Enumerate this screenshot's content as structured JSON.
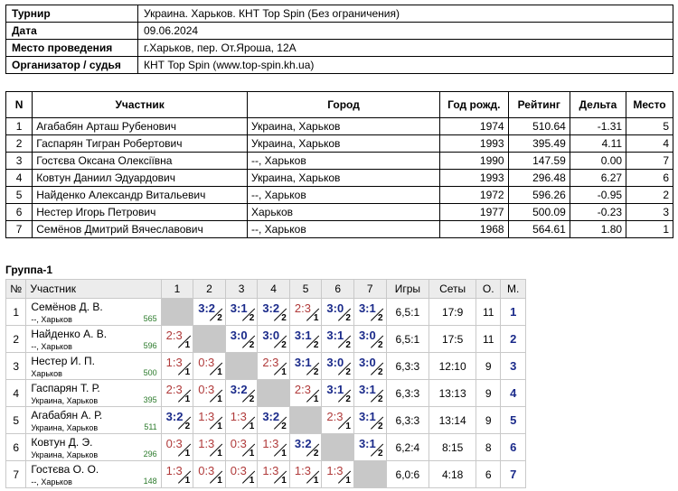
{
  "info": [
    {
      "label": "Турнир",
      "value": "Украина. Харьков. КНТ Top Spin (Без ограничения)"
    },
    {
      "label": "Дата",
      "value": "09.06.2024"
    },
    {
      "label": "Место проведения",
      "value": "г.Харьков, пер. От.Яроша, 12А"
    },
    {
      "label": "Организатор / судья",
      "value": "КНТ Top Spin (www.top-spin.kh.ua)"
    }
  ],
  "participants": {
    "headers": [
      "N",
      "Участник",
      "Город",
      "Год рожд.",
      "Рейтинг",
      "Дельта",
      "Место"
    ],
    "rows": [
      [
        "1",
        "Агабабян Арташ Рубенович",
        "Украина, Харьков",
        "1974",
        "510.64",
        "-1.31",
        "5"
      ],
      [
        "2",
        "Гаспарян Тигран Робертович",
        "Украина, Харьков",
        "1993",
        "395.49",
        "4.11",
        "4"
      ],
      [
        "3",
        "Гостєва Оксана Олексіївна",
        "--, Харьков",
        "1990",
        "147.59",
        "0.00",
        "7"
      ],
      [
        "4",
        "Ковтун Даниил Эдуардович",
        "Украина, Харьков",
        "1993",
        "296.48",
        "6.27",
        "6"
      ],
      [
        "5",
        "Найденко Александр Витальевич",
        "--, Харьков",
        "1972",
        "596.26",
        "-0.95",
        "2"
      ],
      [
        "6",
        "Нестер Игорь Петрович",
        "Харьков",
        "1977",
        "500.09",
        "-0.23",
        "3"
      ],
      [
        "7",
        "Семёнов Дмитрий Вячеславович",
        "--, Харьков",
        "1968",
        "564.61",
        "1.80",
        "1"
      ]
    ]
  },
  "group": {
    "title": "Группа-1",
    "headers": {
      "num": "№",
      "player": "Участник",
      "cols": [
        "1",
        "2",
        "3",
        "4",
        "5",
        "6",
        "7"
      ],
      "games": "Игры",
      "sets": "Сеты",
      "points": "О.",
      "place": "М."
    },
    "rows": [
      {
        "num": "1",
        "name": "Семёнов Д. В.",
        "city": "--, Харьков",
        "rating": "565",
        "cells": [
          null,
          [
            "3:2",
            "2",
            "w"
          ],
          [
            "3:1",
            "2",
            "w"
          ],
          [
            "3:2",
            "2",
            "w"
          ],
          [
            "2:3",
            "1",
            "l"
          ],
          [
            "3:0",
            "2",
            "w"
          ],
          [
            "3:1",
            "2",
            "w"
          ]
        ],
        "games": "6,5:1",
        "sets": "17:9",
        "points": "11",
        "place": "1"
      },
      {
        "num": "2",
        "name": "Найденко А. В.",
        "city": "--, Харьков",
        "rating": "596",
        "cells": [
          [
            "2:3",
            "1",
            "l"
          ],
          null,
          [
            "3:0",
            "2",
            "w"
          ],
          [
            "3:0",
            "2",
            "w"
          ],
          [
            "3:1",
            "2",
            "w"
          ],
          [
            "3:1",
            "2",
            "w"
          ],
          [
            "3:0",
            "2",
            "w"
          ]
        ],
        "games": "6,5:1",
        "sets": "17:5",
        "points": "11",
        "place": "2"
      },
      {
        "num": "3",
        "name": "Нестер И. П.",
        "city": "Харьков",
        "rating": "500",
        "cells": [
          [
            "1:3",
            "1",
            "l"
          ],
          [
            "0:3",
            "1",
            "l"
          ],
          null,
          [
            "2:3",
            "1",
            "l"
          ],
          [
            "3:1",
            "2",
            "w"
          ],
          [
            "3:0",
            "2",
            "w"
          ],
          [
            "3:0",
            "2",
            "w"
          ]
        ],
        "games": "6,3:3",
        "sets": "12:10",
        "points": "9",
        "place": "3"
      },
      {
        "num": "4",
        "name": "Гаспарян Т. Р.",
        "city": "Украина, Харьков",
        "rating": "395",
        "cells": [
          [
            "2:3",
            "1",
            "l"
          ],
          [
            "0:3",
            "1",
            "l"
          ],
          [
            "3:2",
            "2",
            "w"
          ],
          null,
          [
            "2:3",
            "1",
            "l"
          ],
          [
            "3:1",
            "2",
            "w"
          ],
          [
            "3:1",
            "2",
            "w"
          ]
        ],
        "games": "6,3:3",
        "sets": "13:13",
        "points": "9",
        "place": "4"
      },
      {
        "num": "5",
        "name": "Агабабян А. Р.",
        "city": "Украина, Харьков",
        "rating": "511",
        "cells": [
          [
            "3:2",
            "2",
            "w"
          ],
          [
            "1:3",
            "1",
            "l"
          ],
          [
            "1:3",
            "1",
            "l"
          ],
          [
            "3:2",
            "2",
            "w"
          ],
          null,
          [
            "2:3",
            "1",
            "l"
          ],
          [
            "3:1",
            "2",
            "w"
          ]
        ],
        "games": "6,3:3",
        "sets": "13:14",
        "points": "9",
        "place": "5"
      },
      {
        "num": "6",
        "name": "Ковтун Д. Э.",
        "city": "Украина, Харьков",
        "rating": "296",
        "cells": [
          [
            "0:3",
            "1",
            "l"
          ],
          [
            "1:3",
            "1",
            "l"
          ],
          [
            "0:3",
            "1",
            "l"
          ],
          [
            "1:3",
            "1",
            "l"
          ],
          [
            "3:2",
            "2",
            "w"
          ],
          null,
          [
            "3:1",
            "2",
            "w"
          ]
        ],
        "games": "6,2:4",
        "sets": "8:15",
        "points": "8",
        "place": "6"
      },
      {
        "num": "7",
        "name": "Гостєва О. О.",
        "city": "--, Харьков",
        "rating": "148",
        "cells": [
          [
            "1:3",
            "1",
            "l"
          ],
          [
            "0:3",
            "1",
            "l"
          ],
          [
            "0:3",
            "1",
            "l"
          ],
          [
            "1:3",
            "1",
            "l"
          ],
          [
            "1:3",
            "1",
            "l"
          ],
          [
            "1:3",
            "1",
            "l"
          ],
          null
        ],
        "games": "6,0:6",
        "sets": "4:18",
        "points": "6",
        "place": "7"
      }
    ]
  }
}
